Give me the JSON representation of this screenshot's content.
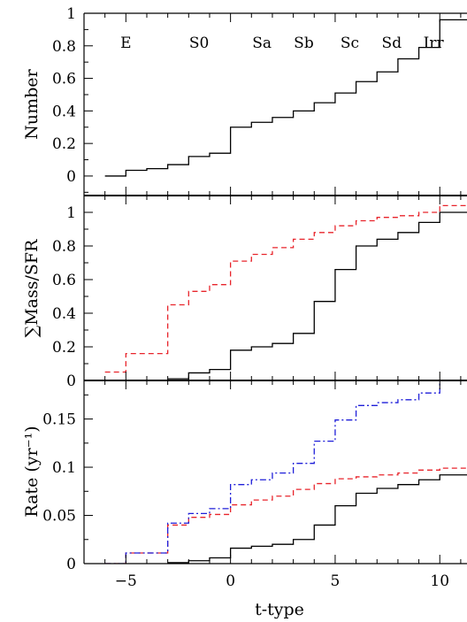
{
  "colors": {
    "axis": "#000000",
    "solid": "#000000",
    "red": "#e8242b",
    "blue": "#1f1fd9"
  },
  "chart_data": {
    "type": "line",
    "xlabel": "t-type",
    "xlim": [
      -7,
      11.3
    ],
    "xticks": [
      -5,
      0,
      5,
      10
    ],
    "xtick_labels": [
      "−5",
      "0",
      "5",
      "10"
    ],
    "panels": [
      {
        "ylabel": "Number",
        "ylim": [
          -0.12,
          1.0
        ],
        "yticks": [
          0,
          0.2,
          0.4,
          0.6,
          0.8,
          1
        ],
        "ytick_labels": [
          "0",
          "0.2",
          "0.4",
          "0.6",
          "0.8",
          "1"
        ],
        "type_labels": [
          {
            "text": "E",
            "x": -5
          },
          {
            "text": "S0",
            "x": -1.5
          },
          {
            "text": "Sa",
            "x": 1.5
          },
          {
            "text": "Sb",
            "x": 3.5
          },
          {
            "text": "Sc",
            "x": 5.7
          },
          {
            "text": "Sd",
            "x": 7.7
          },
          {
            "text": "Irr",
            "x": 9.7
          }
        ],
        "series": [
          {
            "style": "solid",
            "color": "#000000",
            "x": [
              -6,
              -5,
              -4,
              -3,
              -2,
              -1,
              0,
              1,
              2,
              3,
              4,
              5,
              6,
              7,
              8,
              9,
              10
            ],
            "y": [
              0.0,
              0.035,
              0.045,
              0.07,
              0.12,
              0.14,
              0.3,
              0.33,
              0.36,
              0.4,
              0.45,
              0.51,
              0.58,
              0.64,
              0.72,
              0.79,
              0.96
            ]
          }
        ]
      },
      {
        "ylabel": "∑Mass/SFR",
        "ylim": [
          0,
          1.1
        ],
        "yticks": [
          0,
          0.2,
          0.4,
          0.6,
          0.8,
          1
        ],
        "ytick_labels": [
          "0",
          "0.2",
          "0.4",
          "0.6",
          "0.8",
          "1"
        ],
        "series": [
          {
            "style": "solid",
            "color": "#000000",
            "x": [
              -3,
              -2,
              -1,
              0,
              1,
              2,
              3,
              4,
              5,
              6,
              7,
              8,
              9,
              10
            ],
            "y": [
              0.01,
              0.045,
              0.065,
              0.18,
              0.2,
              0.22,
              0.28,
              0.47,
              0.66,
              0.8,
              0.84,
              0.88,
              0.94,
              1.0
            ]
          },
          {
            "style": "dashed",
            "color": "#e8242b",
            "x": [
              -6,
              -5,
              -3,
              -2,
              -1,
              0,
              1,
              2,
              3,
              4,
              5,
              6,
              7,
              8,
              9,
              10
            ],
            "y": [
              0.05,
              0.16,
              0.45,
              0.53,
              0.57,
              0.71,
              0.75,
              0.79,
              0.84,
              0.88,
              0.92,
              0.95,
              0.97,
              0.98,
              1.0,
              1.04
            ]
          }
        ]
      },
      {
        "ylabel": "Rate (yr⁻¹)",
        "ylim": [
          0,
          0.19
        ],
        "yticks": [
          0,
          0.05,
          0.1,
          0.15
        ],
        "ytick_labels": [
          "0",
          "0.05",
          "0.1",
          "0.15"
        ],
        "series": [
          {
            "style": "solid",
            "color": "#000000",
            "x": [
              -3,
              -2,
              -1,
              0,
              1,
              2,
              3,
              4,
              5,
              6,
              7,
              8,
              9,
              10
            ],
            "y": [
              0.001,
              0.003,
              0.006,
              0.016,
              0.018,
              0.02,
              0.025,
              0.04,
              0.06,
              0.073,
              0.078,
              0.082,
              0.087,
              0.092
            ]
          },
          {
            "style": "dashed",
            "color": "#e8242b",
            "x": [
              -6,
              -5,
              -3,
              -2,
              -1,
              0,
              1,
              2,
              3,
              4,
              5,
              6,
              7,
              8,
              9,
              10
            ],
            "y": [
              0.0,
              0.011,
              0.04,
              0.048,
              0.051,
              0.061,
              0.066,
              0.07,
              0.077,
              0.083,
              0.088,
              0.09,
              0.092,
              0.094,
              0.097,
              0.099
            ]
          },
          {
            "style": "dashdot",
            "color": "#1f1fd9",
            "x": [
              -6,
              -5,
              -3,
              -2,
              -1,
              0,
              1,
              2,
              3,
              4,
              5,
              6,
              7,
              8,
              9,
              10
            ],
            "y": [
              0.0,
              0.011,
              0.042,
              0.052,
              0.057,
              0.082,
              0.087,
              0.094,
              0.104,
              0.127,
              0.149,
              0.164,
              0.167,
              0.17,
              0.177,
              0.197
            ]
          }
        ]
      }
    ]
  }
}
